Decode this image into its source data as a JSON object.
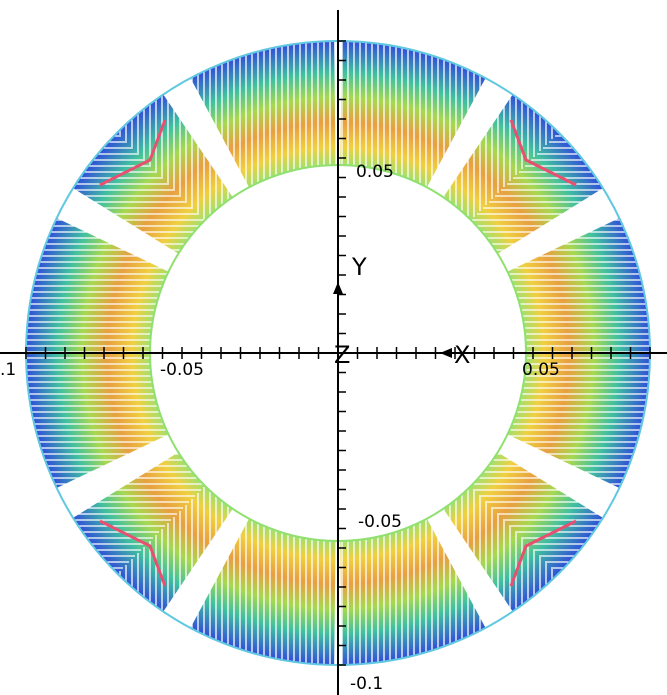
{
  "axes": {
    "x_label": "X",
    "y_label": "Y",
    "z_label": "Z",
    "x_tick_labels": [
      ".1",
      "-0.05",
      "0.05"
    ],
    "y_tick_labels": [
      "0.05",
      "-0.05",
      "-0.1"
    ]
  }
}
